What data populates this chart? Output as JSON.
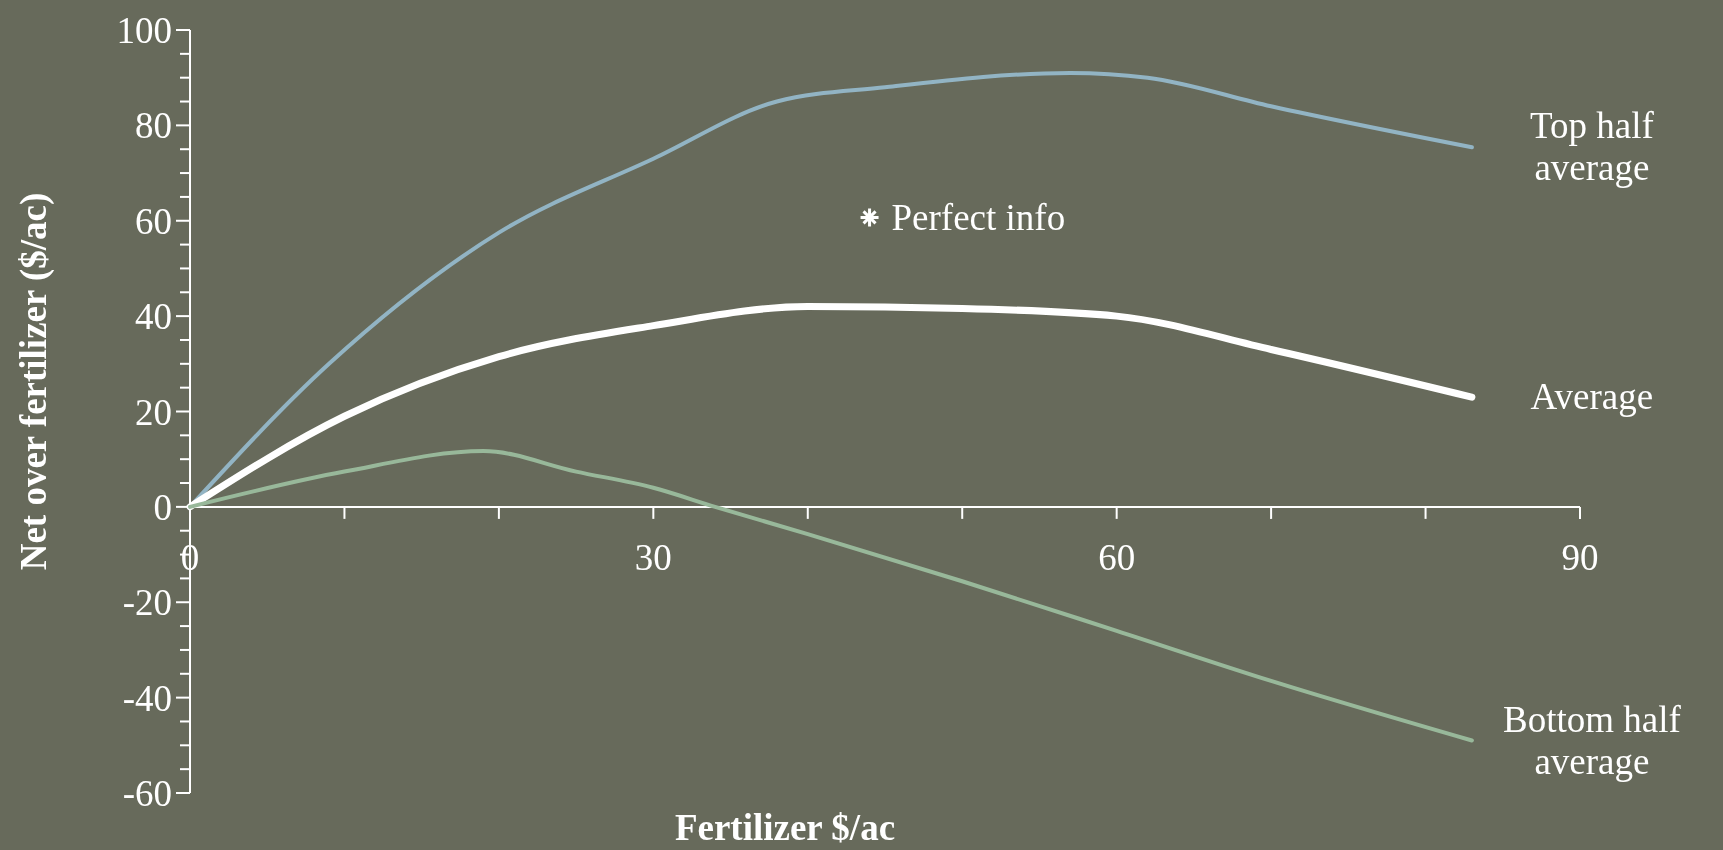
{
  "chart_data": {
    "type": "line",
    "xlabel": "Fertilizer $/ac",
    "ylabel": "Net over fertilizer ($/ac)",
    "xlim": [
      0,
      90
    ],
    "ylim": [
      -60,
      100
    ],
    "xticks": [
      0,
      {
        "value": 10,
        "label": null
      },
      {
        "value": 20,
        "label": null
      },
      30,
      {
        "value": 40,
        "label": null
      },
      {
        "value": 50,
        "label": null
      },
      60,
      {
        "value": 70,
        "label": null
      },
      {
        "value": 80,
        "label": null
      },
      90
    ],
    "yticks": [
      -60,
      {
        "value": -55,
        "label": null
      },
      {
        "value": -50,
        "label": null
      },
      {
        "value": -45,
        "label": null
      },
      -40,
      {
        "value": -35,
        "label": null
      },
      {
        "value": -30,
        "label": null
      },
      {
        "value": -25,
        "label": null
      },
      -20,
      {
        "value": -15,
        "label": null
      },
      {
        "value": -10,
        "label": null
      },
      {
        "value": -5,
        "label": null
      },
      0,
      {
        "value": 5,
        "label": null
      },
      {
        "value": 10,
        "label": null
      },
      {
        "value": 15,
        "label": null
      },
      20,
      {
        "value": 25,
        "label": null
      },
      {
        "value": 30,
        "label": null
      },
      {
        "value": 35,
        "label": null
      },
      40,
      {
        "value": 45,
        "label": null
      },
      {
        "value": 50,
        "label": null
      },
      {
        "value": 55,
        "label": null
      },
      60,
      {
        "value": 65,
        "label": null
      },
      {
        "value": 70,
        "label": null
      },
      {
        "value": 75,
        "label": null
      },
      80,
      {
        "value": 85,
        "label": null
      },
      {
        "value": 90,
        "label": null
      },
      {
        "value": 95,
        "label": null
      },
      100
    ],
    "grid": false,
    "marker": "none",
    "line_style": "solid",
    "series": [
      {
        "name": "Top half average",
        "color": "#92b4c4",
        "x": [
          0,
          9,
          20,
          30,
          38,
          45,
          57,
          62,
          70,
          83
        ],
        "values": [
          0,
          30,
          57.5,
          73,
          85,
          88,
          91,
          90,
          84,
          75.4
        ]
      },
      {
        "name": "Average",
        "color": "#ffffff",
        "x": [
          0,
          10,
          20,
          30,
          40,
          50,
          60,
          70,
          83
        ],
        "values": [
          0,
          19,
          31.5,
          38,
          42,
          41.6,
          40,
          33,
          23
        ]
      },
      {
        "name": "Bottom half average",
        "color": "#98b89a",
        "x": [
          0,
          10,
          19,
          25,
          30,
          34,
          40,
          50,
          60,
          70,
          83
        ],
        "values": [
          0,
          7.4,
          11.7,
          7.4,
          4,
          0,
          -5.7,
          -15.6,
          -26,
          -36.5,
          -49
        ]
      },
      {
        "name": "Perfect info",
        "type": "scatter",
        "marker": "cross",
        "color": "#ffffff",
        "x": [
          44
        ],
        "values": [
          60.7
        ]
      }
    ]
  }
}
